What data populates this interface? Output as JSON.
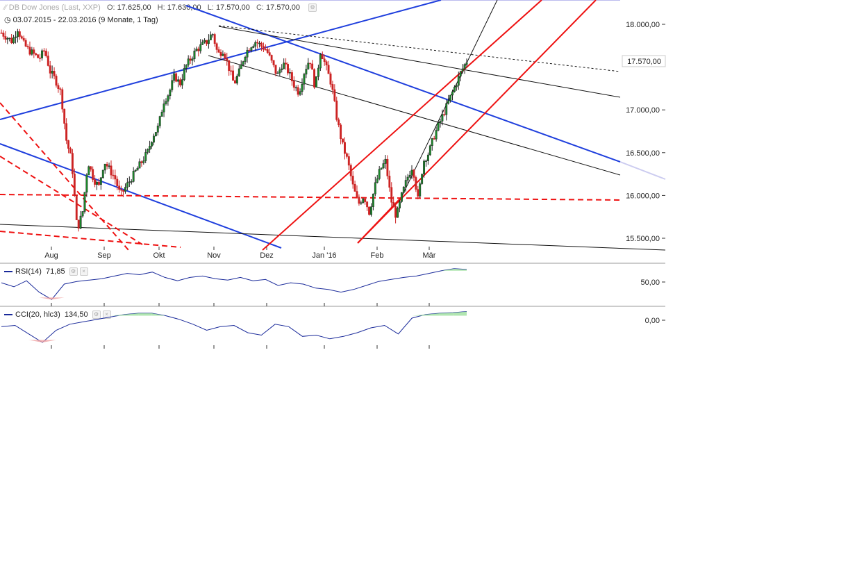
{
  "header": {
    "instrument": "DB Dow Jones (Last, XXP)",
    "open_label": "O:",
    "open": "17.625,00",
    "high_label": "H:",
    "high": "17.630,00",
    "low_label": "L:",
    "low": "17.570,00",
    "close_label": "C:",
    "close": "17.570,00",
    "range": "03.07.2015 - 22.03.2016 (9 Monate, 1 Tag)"
  },
  "last_price_label": "17.570,00",
  "rsi": {
    "label": "RSI(14)",
    "value": "71,85",
    "axis_label": "50,00"
  },
  "cci": {
    "label": "CCI(20, hlc3)",
    "value": "134,50",
    "axis_label": "0,00"
  },
  "colors": {
    "up": "#1a8a2a",
    "down": "#cc2222",
    "blue_line": "#1f3fdd",
    "red_line": "#ee1111",
    "indicator": "#1a2a9a"
  },
  "chart_data": {
    "type": "candlestick",
    "title": "DB Dow Jones (Last, XXP)",
    "x_tick_labels": [
      "Aug",
      "Sep",
      "Okt",
      "Nov",
      "Dez",
      "Jan '16",
      "Feb",
      "Mär"
    ],
    "y_tick_labels": [
      "18.000,00",
      "17.000,00",
      "16.500,00",
      "16.000,00",
      "15.500,00"
    ],
    "ylim": [
      15350,
      18300
    ],
    "last_close": 17570,
    "path": [
      17900,
      17850,
      17800,
      17950,
      17780,
      17700,
      17650,
      17600,
      17700,
      17450,
      17350,
      17200,
      16650,
      16400,
      15600,
      15800,
      16400,
      16200,
      16100,
      16400,
      16300,
      16200,
      16000,
      16100,
      16200,
      16300,
      16400,
      16500,
      16700,
      16800,
      17100,
      17200,
      17400,
      17300,
      17500,
      17600,
      17700,
      17750,
      17800,
      17900,
      17650,
      17700,
      17500,
      17300,
      17450,
      17650,
      17750,
      17800,
      17750,
      17700,
      17550,
      17400,
      17550,
      17450,
      17300,
      17200,
      17450,
      17600,
      17250,
      17700,
      17500,
      17300,
      16900,
      16600,
      16400,
      16100,
      15900,
      16000,
      15800,
      16100,
      16300,
      16400,
      15950,
      15750,
      16000,
      16200,
      16350,
      15950,
      16400,
      16500,
      16700,
      16850,
      17000,
      17150,
      17300,
      17450,
      17570
    ]
  },
  "rsi_data": [
    52,
    46,
    55,
    38,
    27,
    50,
    54,
    56,
    58,
    62,
    66,
    64,
    68,
    60,
    55,
    60,
    62,
    58,
    56,
    60,
    55,
    57,
    48,
    52,
    50,
    44,
    42,
    38,
    42,
    48,
    54,
    57,
    60,
    62,
    66,
    70,
    73,
    71.85
  ],
  "cci_data": [
    10,
    20,
    -50,
    -120,
    -20,
    30,
    50,
    70,
    90,
    110,
    120,
    120,
    100,
    70,
    30,
    -20,
    10,
    20,
    -40,
    -60,
    30,
    10,
    -70,
    -60,
    -90,
    -70,
    -40,
    0,
    20,
    -50,
    80,
    110,
    120,
    125,
    134.5
  ]
}
